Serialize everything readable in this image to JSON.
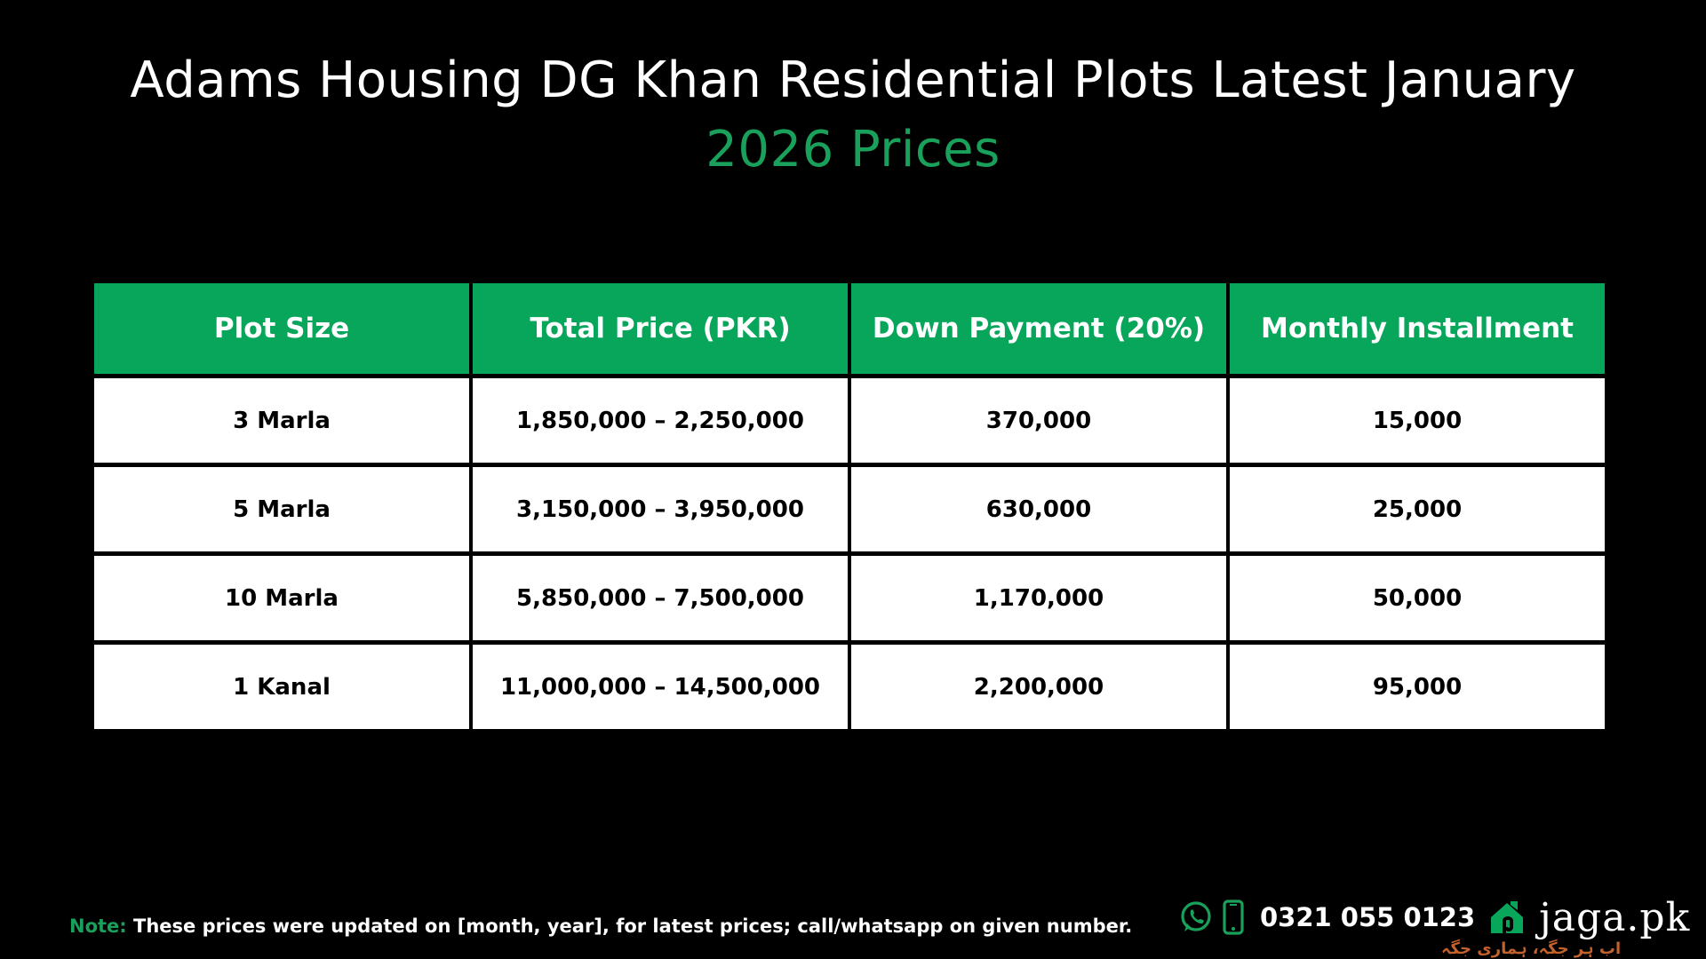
{
  "title": {
    "line1": "Adams Housing DG Khan Residential Plots Latest January",
    "line2": "2026 Prices"
  },
  "colors": {
    "accent_green": "#07a65b",
    "title_green": "#19a05a",
    "background": "#000000",
    "tagline_orange": "#c4622c"
  },
  "table": {
    "headers": [
      "Plot Size",
      "Total Price (PKR)",
      "Down Payment (20%)",
      "Monthly Installment"
    ],
    "rows": [
      [
        "3 Marla",
        "1,850,000 – 2,250,000",
        "370,000",
        "15,000"
      ],
      [
        "5 Marla",
        "3,150,000 – 3,950,000",
        "630,000",
        "25,000"
      ],
      [
        "10 Marla",
        "5,850,000 – 7,500,000",
        "1,170,000",
        "50,000"
      ],
      [
        "1 Kanal",
        "11,000,000 – 14,500,000",
        "2,200,000",
        "95,000"
      ]
    ]
  },
  "note": {
    "label": "Note:",
    "text": " These prices were updated on [month, year], for latest prices; call/whatsapp on given number."
  },
  "contact": {
    "phone": "0321 055 0123",
    "icons": [
      "whatsapp-icon",
      "mobile-phone-icon",
      "jaga-house-logo-icon"
    ]
  },
  "brand": {
    "name": "jaga.pk",
    "tagline": "اب ہر جگہ، ہماری جگہ"
  }
}
